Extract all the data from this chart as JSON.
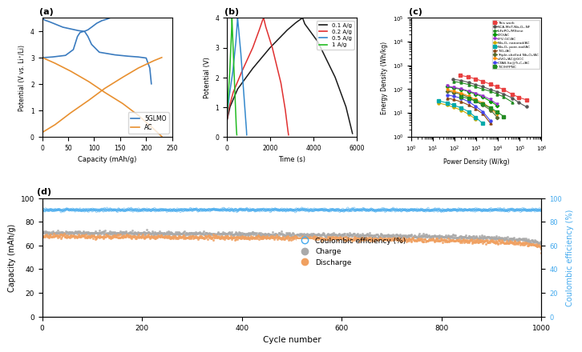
{
  "panel_a": {
    "title": "(a)",
    "xlabel": "Capacity (mAh/g)",
    "ylabel": "Potential (V vs. Li⁺/Li)",
    "xlim": [
      0,
      250
    ],
    "ylim": [
      0,
      4.5
    ],
    "xticks": [
      0,
      50,
      100,
      150,
      200,
      250
    ],
    "yticks": [
      0,
      1,
      2,
      3,
      4
    ],
    "glmo_color": "#3a7bbf",
    "ac_color": "#e89030",
    "glmo_label": "5GLMO",
    "ac_label": "AC"
  },
  "panel_b": {
    "title": "(b)",
    "xlabel": "Time (s)",
    "ylabel": "Potential (V)",
    "xlim": [
      0,
      6000
    ],
    "ylim": [
      0,
      4
    ],
    "xticks": [
      0,
      2000,
      4000,
      6000
    ],
    "yticks": [
      0,
      1,
      2,
      3,
      4
    ],
    "rates": [
      "0.1 A/g",
      "0.2 A/g",
      "0.5 A/g",
      "1 A/g"
    ],
    "colors": [
      "#1a1a1a",
      "#e03030",
      "#3388cc",
      "#22bb22"
    ]
  },
  "panel_c": {
    "title": "(c)",
    "xlabel": "Power Density (W/kg)",
    "ylabel": "Energy Density (Wh/kg)",
    "series": [
      {
        "label": "This work",
        "color": "#e84040",
        "marker": "s",
        "x": [
          180,
          400,
          900,
          2000,
          4500,
          9000,
          18000,
          45000,
          90000,
          200000
        ],
        "y": [
          380,
          330,
          270,
          210,
          160,
          125,
          95,
          60,
          45,
          35
        ]
      },
      {
        "label": "NCA-MnT-Nb₂O₅-NF",
        "color": "#555555",
        "marker": "o",
        "x": [
          80,
          200,
          450,
          900,
          2000,
          4500,
          9000,
          18000,
          45000,
          90000,
          200000
        ],
        "y": [
          260,
          230,
          190,
          155,
          125,
          95,
          78,
          62,
          42,
          27,
          18
        ]
      },
      {
        "label": "LiFePO₄/MXene",
        "color": "#228B22",
        "marker": "^",
        "x": [
          90,
          200,
          450,
          900,
          2000,
          4500,
          9000,
          18000,
          45000
        ],
        "y": [
          210,
          185,
          155,
          125,
          100,
          80,
          62,
          47,
          28
        ]
      },
      {
        "label": "LTO/AC",
        "color": "#009900",
        "marker": "D",
        "x": [
          45,
          90,
          200,
          450,
          900,
          2000,
          4500,
          9000
        ],
        "y": [
          125,
          112,
          98,
          77,
          62,
          46,
          30,
          20
        ]
      },
      {
        "label": "LFV-GC/AC",
        "color": "#9933cc",
        "marker": "v",
        "x": [
          45,
          90,
          200,
          450,
          900,
          2000,
          4500,
          9000
        ],
        "y": [
          135,
          118,
          102,
          82,
          67,
          52,
          36,
          23
        ]
      },
      {
        "label": "Nb₂O₅ nanorod/AC",
        "color": "#ccaa00",
        "marker": "o",
        "x": [
          18,
          45,
          90,
          200,
          450,
          900
        ],
        "y": [
          26,
          21,
          17,
          13,
          8.5,
          5.5
        ]
      },
      {
        "label": "Nb₂O₅ pore-rod/AC",
        "color": "#00aaaa",
        "marker": "s",
        "x": [
          18,
          45,
          90,
          200,
          450,
          900,
          2000
        ],
        "y": [
          32,
          26,
          21,
          16,
          11,
          6.5,
          3.5
        ]
      },
      {
        "label": "TiO₂/AC",
        "color": "#8B4513",
        "marker": "^",
        "x": [
          45,
          90,
          200,
          450,
          900,
          2000,
          4500
        ],
        "y": [
          42,
          36,
          29,
          21,
          15,
          9,
          3.5
        ]
      },
      {
        "label": "Triple-shelled Nb₂O₅/AC",
        "color": "#556B2F",
        "marker": "D",
        "x": [
          45,
          90,
          200,
          450,
          900,
          2000,
          4500,
          9000
        ],
        "y": [
          82,
          72,
          60,
          44,
          31,
          21,
          13,
          6.5
        ]
      },
      {
        "label": "d-VO₂/AC@GCC",
        "color": "#FF8C00",
        "marker": "v",
        "x": [
          45,
          90,
          200,
          450,
          900,
          2000,
          4500,
          9000
        ],
        "y": [
          93,
          80,
          67,
          50,
          36,
          26,
          16,
          8.5
        ]
      },
      {
        "label": "CTAB-Se@Ti₃C₂/AC",
        "color": "#4444ee",
        "marker": "o",
        "x": [
          45,
          90,
          200,
          450,
          900,
          2000,
          4500
        ],
        "y": [
          57,
          50,
          41,
          29,
          19,
          11,
          4.5
        ]
      },
      {
        "label": "TiC/HFPNC",
        "color": "#228B22",
        "marker": "s",
        "x": [
          200,
          450,
          900,
          2000,
          4500,
          9000,
          18000
        ],
        "y": [
          47,
          40,
          31,
          23,
          16,
          11,
          7
        ]
      }
    ]
  },
  "panel_d": {
    "title": "(d)",
    "xlabel": "Cycle number",
    "ylabel": "Capacity (mAh/g)",
    "ylabel2": "Coulombic efficiency (%)",
    "xlim": [
      0,
      1000
    ],
    "ylim": [
      0,
      100
    ],
    "ylim2": [
      0,
      100
    ],
    "xticks": [
      0,
      200,
      400,
      600,
      800,
      1000
    ],
    "yticks": [
      0,
      20,
      40,
      60,
      80,
      100
    ],
    "yticks2": [
      0,
      20,
      40,
      60,
      80,
      100
    ],
    "charge_color": "#aaaaaa",
    "discharge_color": "#f0a060",
    "ce_color": "#44aaee",
    "charge_label": "Charge",
    "discharge_label": "Discharge",
    "ce_label": "Coulombic efficiency (%)",
    "charge_start": 71,
    "charge_end": 57,
    "discharge_start": 68,
    "discharge_end": 54,
    "ce_value": 90
  }
}
